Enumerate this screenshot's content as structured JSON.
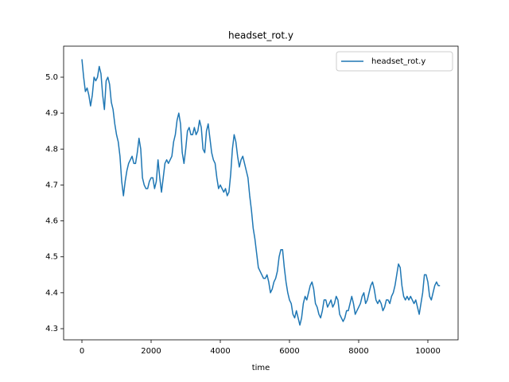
{
  "chart_data": {
    "type": "line",
    "title": "headset_rot.y",
    "x_label": "time",
    "x": [
      0,
      50,
      100,
      150,
      200,
      250,
      300,
      350,
      400,
      450,
      500,
      550,
      600,
      650,
      700,
      750,
      800,
      850,
      900,
      950,
      1000,
      1050,
      1100,
      1150,
      1200,
      1250,
      1300,
      1350,
      1400,
      1450,
      1500,
      1550,
      1600,
      1650,
      1700,
      1750,
      1800,
      1850,
      1900,
      1950,
      2000,
      2050,
      2100,
      2150,
      2200,
      2250,
      2300,
      2350,
      2400,
      2450,
      2500,
      2550,
      2600,
      2650,
      2700,
      2750,
      2800,
      2850,
      2900,
      2950,
      3000,
      3050,
      3100,
      3150,
      3200,
      3250,
      3300,
      3350,
      3400,
      3450,
      3500,
      3550,
      3600,
      3650,
      3700,
      3750,
      3800,
      3850,
      3900,
      3950,
      4000,
      4050,
      4100,
      4150,
      4200,
      4250,
      4300,
      4350,
      4400,
      4450,
      4500,
      4550,
      4600,
      4650,
      4700,
      4750,
      4800,
      4850,
      4900,
      4950,
      5000,
      5050,
      5100,
      5150,
      5200,
      5250,
      5300,
      5350,
      5400,
      5450,
      5500,
      5550,
      5600,
      5650,
      5700,
      5750,
      5800,
      5850,
      5900,
      5950,
      6000,
      6050,
      6100,
      6150,
      6200,
      6250,
      6300,
      6350,
      6400,
      6450,
      6500,
      6550,
      6600,
      6650,
      6700,
      6750,
      6800,
      6850,
      6900,
      6950,
      7000,
      7050,
      7100,
      7150,
      7200,
      7250,
      7300,
      7350,
      7400,
      7450,
      7500,
      7550,
      7600,
      7650,
      7700,
      7750,
      7800,
      7850,
      7900,
      7950,
      8000,
      8050,
      8100,
      8150,
      8200,
      8250,
      8300,
      8350,
      8400,
      8450,
      8500,
      8550,
      8600,
      8650,
      8700,
      8750,
      8800,
      8850,
      8900,
      8950,
      9000,
      9050,
      9100,
      9150,
      9200,
      9250,
      9300,
      9350,
      9400,
      9450,
      9500,
      9550,
      9600,
      9650,
      9700,
      9750,
      9800,
      9850,
      9900,
      9950,
      10000,
      10050,
      10100,
      10150,
      10200,
      10250,
      10300,
      10350
    ],
    "series": [
      {
        "name": "headset_rot.y",
        "color": "#1f77b4",
        "values": [
          5.05,
          5.0,
          4.96,
          4.97,
          4.95,
          4.92,
          4.95,
          5.0,
          4.99,
          5.0,
          5.03,
          5.01,
          4.95,
          4.91,
          4.99,
          5.0,
          4.98,
          4.93,
          4.91,
          4.87,
          4.84,
          4.82,
          4.78,
          4.71,
          4.67,
          4.71,
          4.74,
          4.76,
          4.77,
          4.78,
          4.76,
          4.76,
          4.79,
          4.83,
          4.8,
          4.72,
          4.7,
          4.69,
          4.69,
          4.71,
          4.72,
          4.72,
          4.69,
          4.71,
          4.77,
          4.72,
          4.68,
          4.72,
          4.76,
          4.77,
          4.76,
          4.77,
          4.78,
          4.82,
          4.84,
          4.88,
          4.9,
          4.87,
          4.79,
          4.76,
          4.8,
          4.85,
          4.86,
          4.84,
          4.84,
          4.86,
          4.84,
          4.85,
          4.88,
          4.86,
          4.8,
          4.79,
          4.85,
          4.87,
          4.83,
          4.79,
          4.77,
          4.76,
          4.72,
          4.69,
          4.7,
          4.69,
          4.68,
          4.69,
          4.67,
          4.68,
          4.73,
          4.8,
          4.84,
          4.82,
          4.78,
          4.75,
          4.77,
          4.78,
          4.76,
          4.74,
          4.72,
          4.67,
          4.63,
          4.58,
          4.55,
          4.51,
          4.47,
          4.46,
          4.45,
          4.44,
          4.44,
          4.45,
          4.43,
          4.4,
          4.41,
          4.43,
          4.44,
          4.46,
          4.5,
          4.52,
          4.52,
          4.47,
          4.43,
          4.4,
          4.38,
          4.37,
          4.34,
          4.33,
          4.35,
          4.33,
          4.31,
          4.33,
          4.37,
          4.39,
          4.38,
          4.4,
          4.42,
          4.43,
          4.41,
          4.37,
          4.36,
          4.34,
          4.33,
          4.35,
          4.38,
          4.38,
          4.36,
          4.37,
          4.38,
          4.36,
          4.37,
          4.39,
          4.38,
          4.34,
          4.33,
          4.32,
          4.33,
          4.35,
          4.35,
          4.37,
          4.39,
          4.37,
          4.34,
          4.35,
          4.36,
          4.37,
          4.39,
          4.4,
          4.37,
          4.38,
          4.4,
          4.42,
          4.43,
          4.41,
          4.38,
          4.37,
          4.38,
          4.37,
          4.35,
          4.36,
          4.38,
          4.38,
          4.37,
          4.39,
          4.4,
          4.42,
          4.45,
          4.48,
          4.47,
          4.42,
          4.39,
          4.38,
          4.39,
          4.38,
          4.39,
          4.38,
          4.37,
          4.38,
          4.36,
          4.34,
          4.37,
          4.4,
          4.45,
          4.45,
          4.43,
          4.39,
          4.38,
          4.4,
          4.42,
          4.43,
          4.42,
          4.42
        ]
      }
    ],
    "xlim": [
      -529,
      10874
    ],
    "ylim": [
      4.269,
      5.0864
    ],
    "xticks": [
      0,
      2000,
      4000,
      6000,
      8000,
      10000
    ],
    "yticks": [
      4.3,
      4.4,
      4.5,
      4.6,
      4.7,
      4.8,
      4.9,
      {
        "value": 5,
        "label": "5.0"
      }
    ],
    "grid": false,
    "legend": "upper right"
  }
}
